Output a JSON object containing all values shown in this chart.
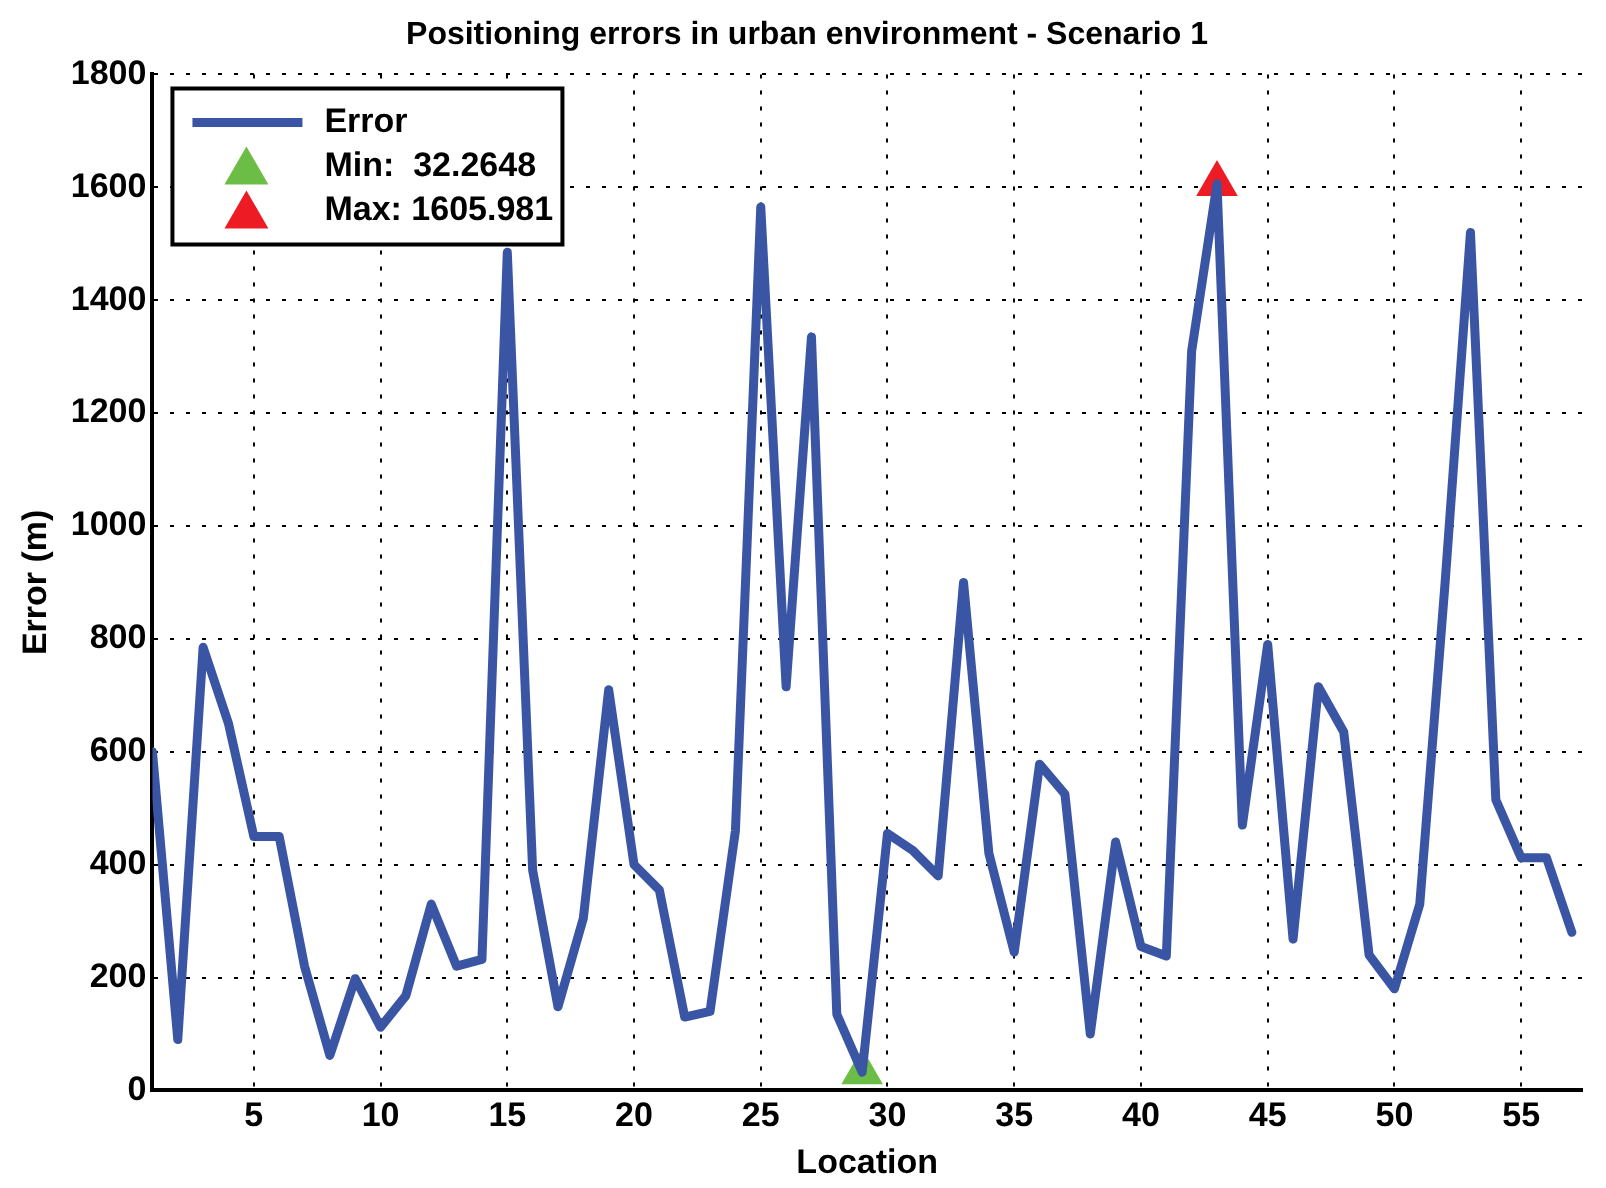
{
  "chart_data": {
    "type": "line",
    "title": "Positioning errors in urban environment - Scenario 1",
    "xlabel": "Location",
    "ylabel": "Error (m)",
    "x": [
      1,
      2,
      3,
      4,
      5,
      6,
      7,
      8,
      9,
      10,
      11,
      12,
      13,
      14,
      15,
      16,
      17,
      18,
      19,
      20,
      21,
      22,
      23,
      24,
      25,
      26,
      27,
      28,
      29,
      30,
      31,
      32,
      33,
      34,
      35,
      36,
      37,
      38,
      39,
      40,
      41,
      42,
      43,
      44,
      45,
      46,
      47,
      48,
      49,
      50,
      51,
      52,
      53,
      54,
      55,
      56,
      57
    ],
    "series": [
      {
        "name": "Error",
        "color": "#3a55a4",
        "marker": "none",
        "values": [
          600,
          90,
          785,
          650,
          450,
          450,
          220,
          62,
          198,
          112,
          168,
          330,
          220,
          232,
          1485,
          390,
          148,
          305,
          710,
          400,
          355,
          130,
          140,
          460,
          1565,
          715,
          1335,
          135,
          32.2648,
          455,
          425,
          380,
          900,
          420,
          245,
          578,
          525,
          100,
          440,
          255,
          238,
          1310,
          1605.981,
          470,
          790,
          268,
          715,
          635,
          240,
          180,
          330,
          900,
          1520,
          515,
          412,
          412,
          280
        ]
      },
      {
        "name": "Min:  32.2648",
        "type": "scatter",
        "color": "#6cbd45",
        "marker": "triangle",
        "x": [
          29
        ],
        "values": [
          32.2648
        ]
      },
      {
        "name": "Max: 1605.981",
        "type": "scatter",
        "color": "#ed1c24",
        "marker": "triangle",
        "x": [
          43
        ],
        "values": [
          1605.981
        ]
      }
    ],
    "xlim": [
      1,
      57.4
    ],
    "xticks": [
      5,
      10,
      15,
      20,
      25,
      30,
      35,
      40,
      45,
      50,
      55
    ],
    "ylim": [
      0,
      1800
    ],
    "yticks": [
      0,
      200,
      400,
      600,
      800,
      1000,
      1200,
      1400,
      1600,
      1800
    ],
    "grid": true,
    "legend": "top left",
    "line_style": "solid"
  }
}
